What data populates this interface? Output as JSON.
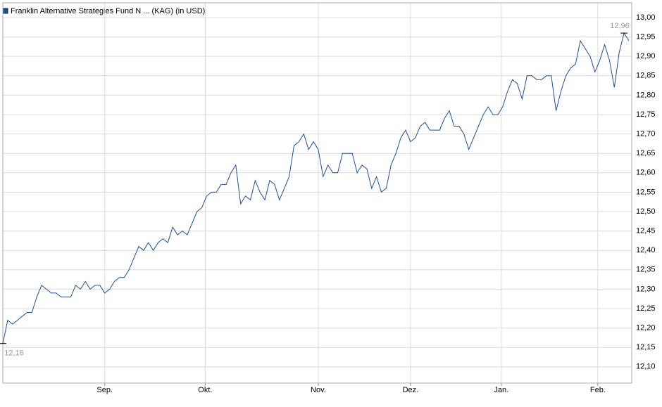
{
  "chart_data": {
    "type": "line",
    "title": "Franklin Alternative Strategies Fund N ... (KAG) (in USD)",
    "color": "#1f4e96",
    "values": [
      12.16,
      12.22,
      12.21,
      12.22,
      12.23,
      12.24,
      12.24,
      12.28,
      12.31,
      12.3,
      12.29,
      12.29,
      12.28,
      12.28,
      12.28,
      12.31,
      12.3,
      12.32,
      12.3,
      12.31,
      12.31,
      12.29,
      12.3,
      12.32,
      12.33,
      12.33,
      12.35,
      12.38,
      12.41,
      12.4,
      12.42,
      12.4,
      12.42,
      12.43,
      12.42,
      12.46,
      12.44,
      12.45,
      12.44,
      12.47,
      12.5,
      12.51,
      12.54,
      12.55,
      12.55,
      12.57,
      12.57,
      12.6,
      12.62,
      12.52,
      12.54,
      12.53,
      12.58,
      12.55,
      12.53,
      12.58,
      12.57,
      12.53,
      12.56,
      12.59,
      12.67,
      12.68,
      12.7,
      12.66,
      12.68,
      12.66,
      12.59,
      12.62,
      12.6,
      12.6,
      12.65,
      12.65,
      12.65,
      12.6,
      12.62,
      12.61,
      12.56,
      12.59,
      12.55,
      12.56,
      12.62,
      12.65,
      12.69,
      12.71,
      12.68,
      12.69,
      12.72,
      12.73,
      12.71,
      12.71,
      12.71,
      12.74,
      12.76,
      12.72,
      12.72,
      12.7,
      12.66,
      12.69,
      12.72,
      12.75,
      12.77,
      12.75,
      12.75,
      12.77,
      12.81,
      12.84,
      12.83,
      12.79,
      12.85,
      12.85,
      12.84,
      12.84,
      12.85,
      12.85,
      12.76,
      12.81,
      12.85,
      12.87,
      12.88,
      12.94,
      12.92,
      12.9,
      12.86,
      12.89,
      12.93,
      12.89,
      12.82,
      12.91,
      12.96,
      12.94
    ],
    "xlim": [
      0,
      129
    ],
    "xticks": [
      {
        "value": 21,
        "label": "Sep."
      },
      {
        "value": 41.7,
        "label": "Okt."
      },
      {
        "value": 65,
        "label": "Nov."
      },
      {
        "value": 84,
        "label": "Dez."
      },
      {
        "value": 102.7,
        "label": "Jan."
      },
      {
        "value": 122.6,
        "label": "Feb."
      }
    ],
    "ylim": [
      12.058,
      13.038
    ],
    "yticks": [
      {
        "value": 12.1,
        "label": "12,10"
      },
      {
        "value": 12.15,
        "label": "12,15"
      },
      {
        "value": 12.2,
        "label": "12,20"
      },
      {
        "value": 12.25,
        "label": "12,25"
      },
      {
        "value": 12.3,
        "label": "12,30"
      },
      {
        "value": 12.35,
        "label": "12,35"
      },
      {
        "value": 12.4,
        "label": "12,40"
      },
      {
        "value": 12.45,
        "label": "12,45"
      },
      {
        "value": 12.5,
        "label": "12,50"
      },
      {
        "value": 12.55,
        "label": "12,55"
      },
      {
        "value": 12.6,
        "label": "12,60"
      },
      {
        "value": 12.65,
        "label": "12,65"
      },
      {
        "value": 12.7,
        "label": "12,70"
      },
      {
        "value": 12.75,
        "label": "12,75"
      },
      {
        "value": 12.8,
        "label": "12,80"
      },
      {
        "value": 12.85,
        "label": "12,85"
      },
      {
        "value": 12.9,
        "label": "12,90"
      },
      {
        "value": 12.95,
        "label": "12,95"
      },
      {
        "value": 13.0,
        "label": "13,00"
      }
    ],
    "min_label": {
      "value": 12.16,
      "label": "12,16"
    },
    "max_label": {
      "value": 12.96,
      "label": "12,96"
    },
    "grid": true
  }
}
